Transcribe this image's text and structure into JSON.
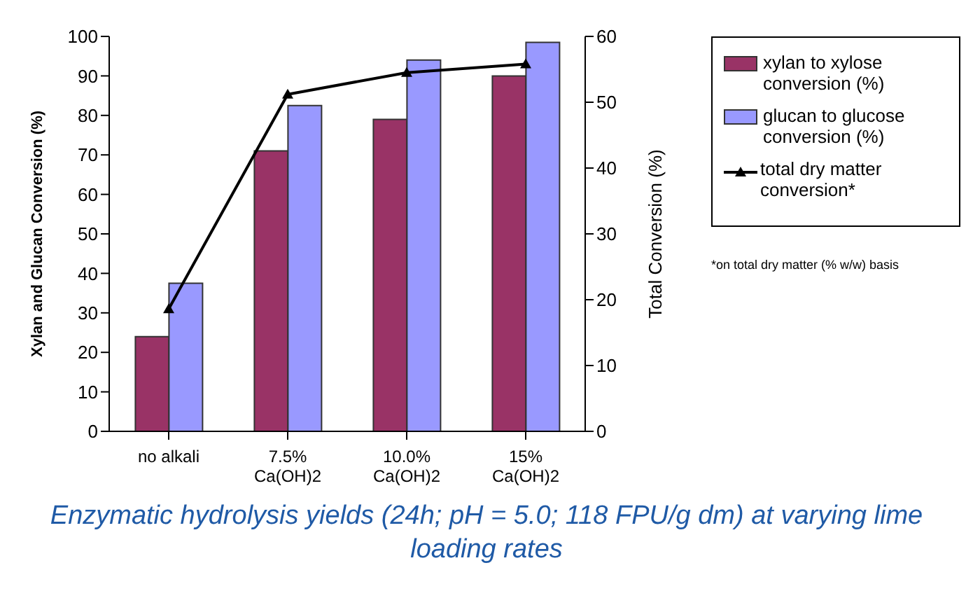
{
  "chart_data": {
    "type": "bar",
    "categories": [
      "no alkali",
      "7.5%\nCa(OH)2",
      "10.0%\nCa(OH)2",
      "15%\nCa(OH)2"
    ],
    "ylabel": "Xylan and Glucan Conversion (%)",
    "y2label": "Total Conversion (%)",
    "ylim": [
      0,
      100
    ],
    "yticks": [
      0,
      10,
      20,
      30,
      40,
      50,
      60,
      70,
      80,
      90,
      100
    ],
    "y2lim": [
      0,
      60
    ],
    "y2ticks": [
      0,
      10,
      20,
      30,
      40,
      50,
      60
    ],
    "series": [
      {
        "name": "xylan to xylose conversion (%)",
        "color": "#993366",
        "values": [
          24,
          71,
          79,
          90
        ]
      },
      {
        "name": "glucan to glucose conversion (%)",
        "color": "#9999ff",
        "values": [
          37.5,
          82.5,
          94,
          98.5
        ]
      },
      {
        "name": "total dry matter conversion*",
        "type": "line",
        "axis": "y2",
        "color": "#000000",
        "marker": "triangle",
        "values": [
          18.6,
          51.2,
          54.5,
          55.8
        ]
      }
    ],
    "legend": "right",
    "grid": false,
    "annotations": [
      "*on total dry matter (% w/w) basis",
      "Enzymatic hydrolysis yields (24h; pH = 5.0; 118 FPU/g dm) at varying lime loading rates"
    ]
  }
}
